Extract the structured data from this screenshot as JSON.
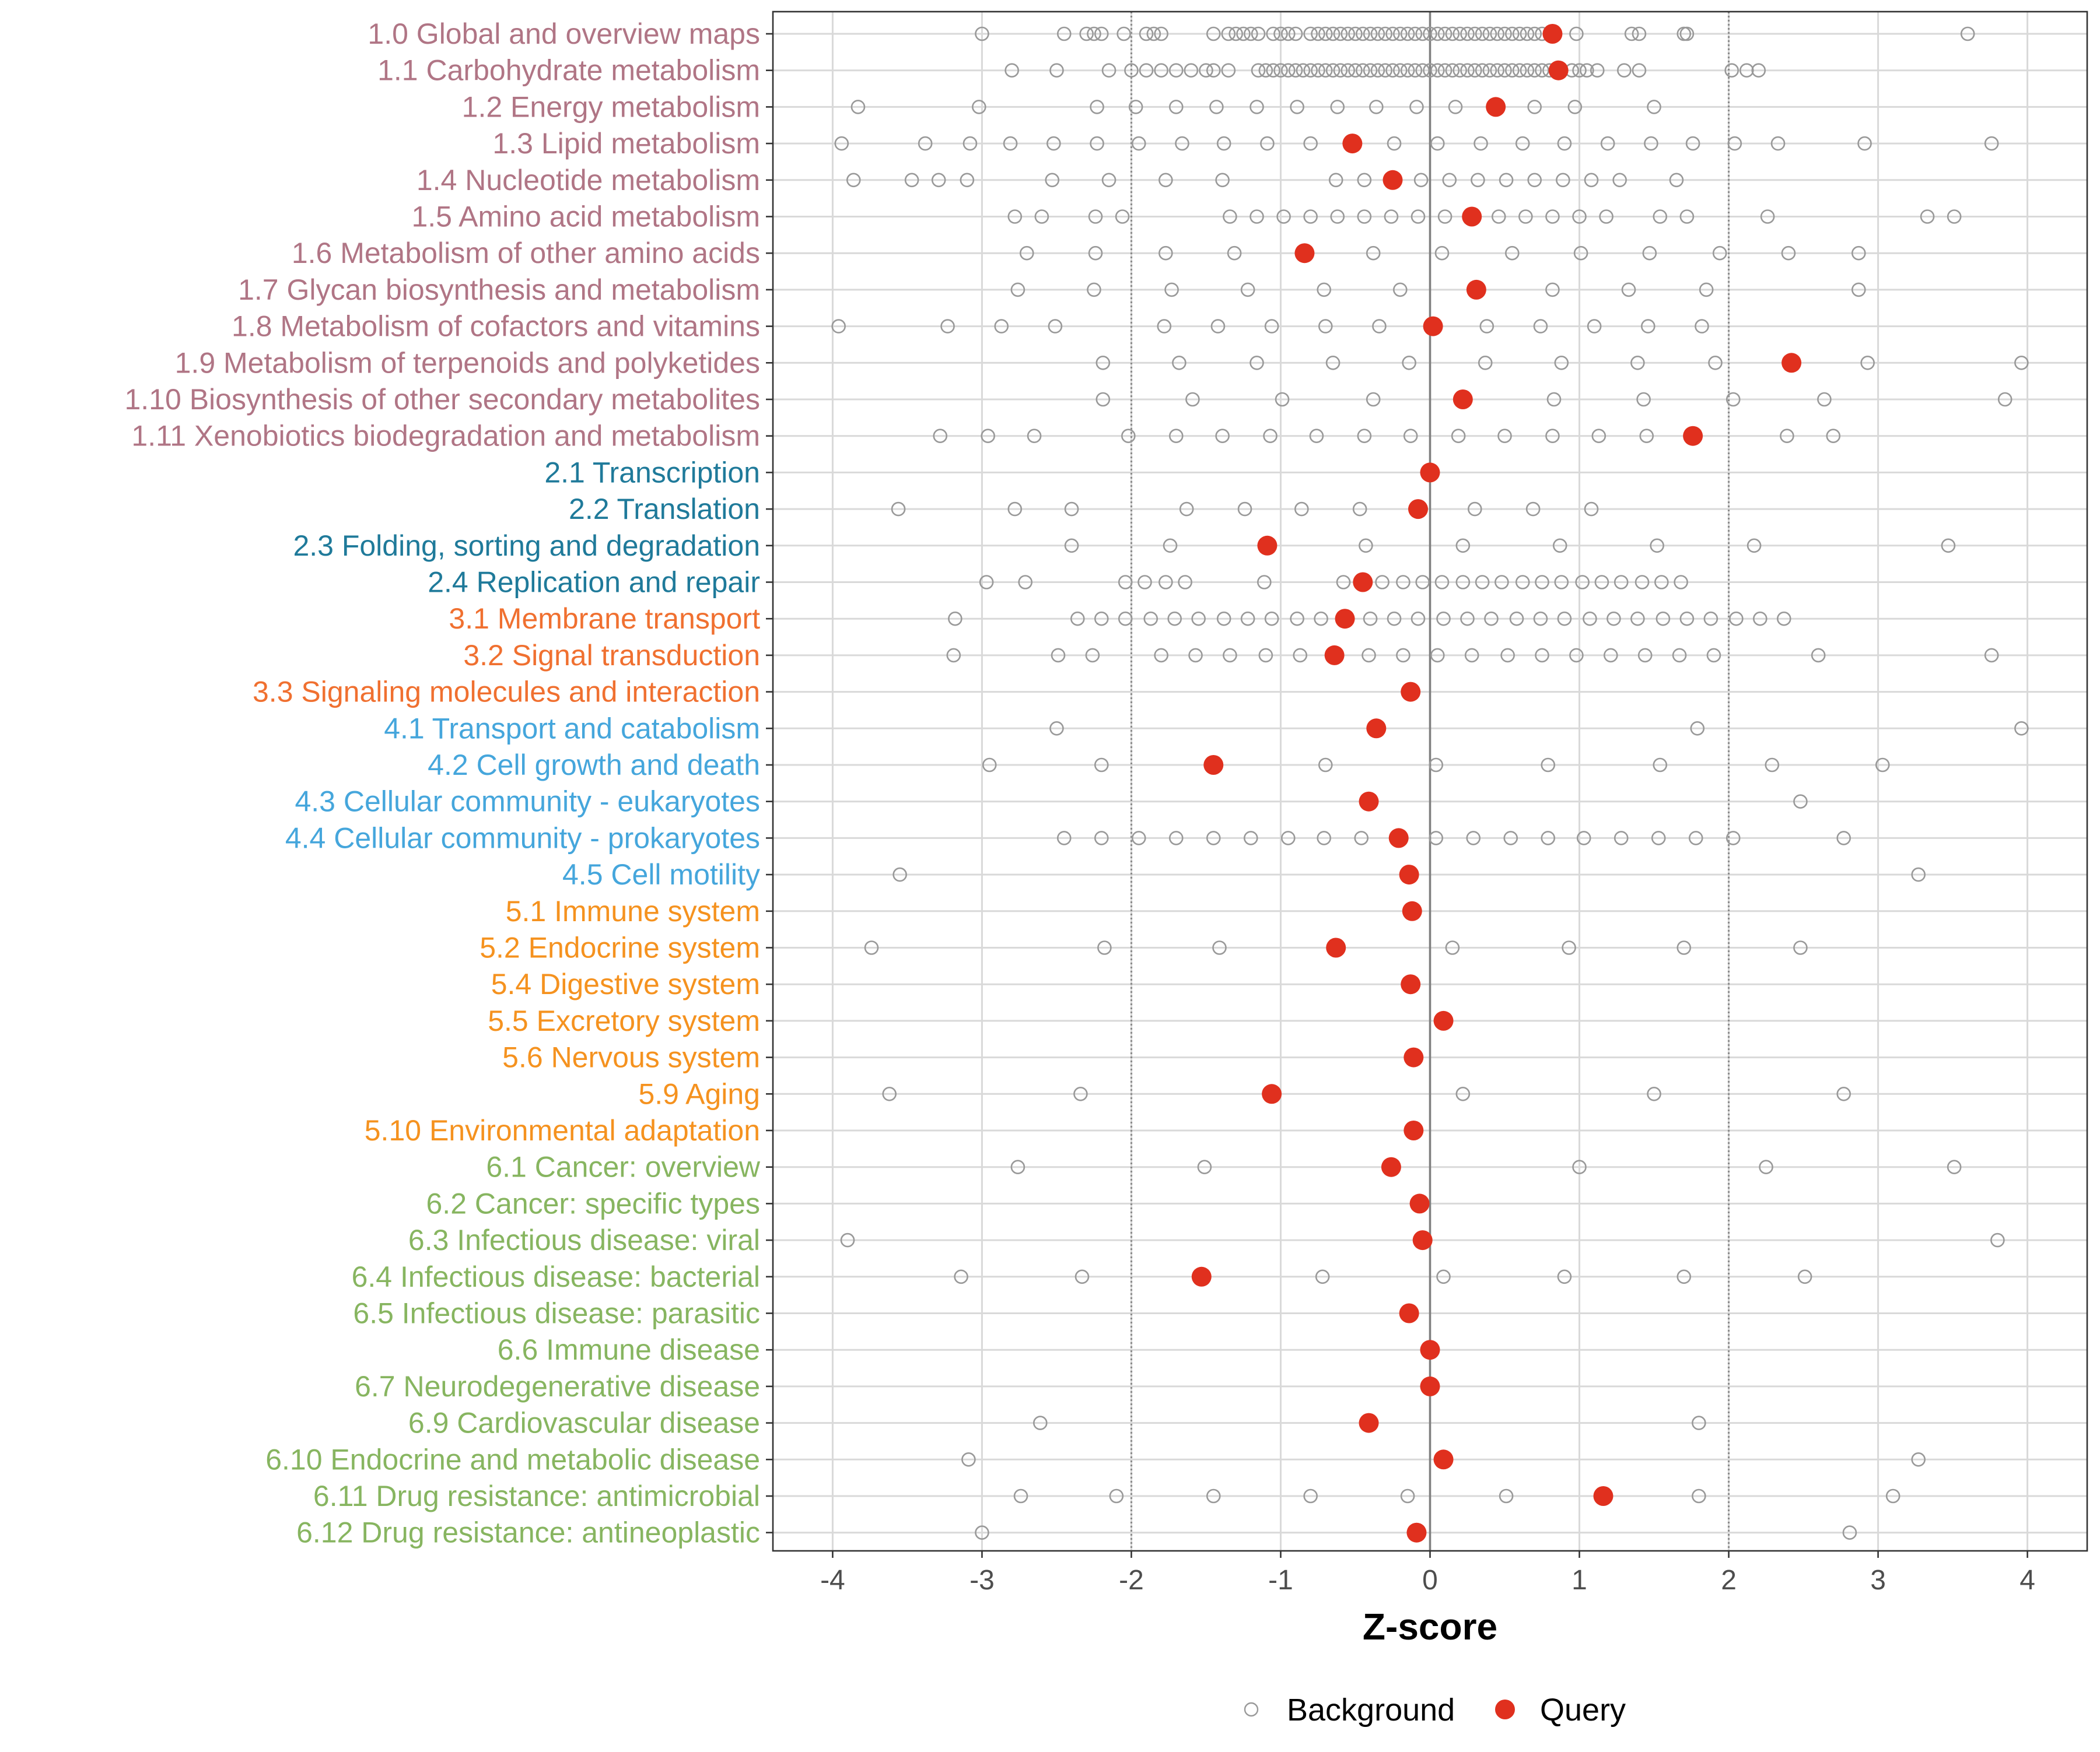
{
  "chart_data": {
    "type": "scatter",
    "title": "",
    "xlabel": "Z-score",
    "ylabel": "",
    "xlim": [
      -4.4,
      4.4
    ],
    "xticks": [
      -4,
      -3,
      -2,
      -1,
      0,
      1,
      2,
      3,
      4
    ],
    "threshold_lines": [
      -2,
      2
    ],
    "zero_line": 0,
    "legend": {
      "placement": "bottom",
      "items": [
        {
          "key": "background",
          "label": "Background"
        },
        {
          "key": "query",
          "label": "Query"
        }
      ]
    },
    "colors": {
      "background_point": "#999999",
      "query_point": "#e0301e",
      "grid": "#d9d9d9",
      "threshold": "#8c8c8c",
      "zero": "#808080",
      "cat1": "#b07585",
      "cat2": "#1f7a9a",
      "cat3": "#f07030",
      "cat4": "#45a6dc",
      "cat5": "#f5921f",
      "cat6": "#87b560"
    },
    "categories": [
      {
        "label": "1.0 Global and overview maps",
        "group": 1,
        "query": 0.82,
        "background": [
          -3.0,
          -2.45,
          -2.3,
          -2.25,
          -2.2,
          -2.05,
          -1.9,
          -1.85,
          -1.8,
          -1.45,
          -1.35,
          -1.3,
          -1.25,
          -1.2,
          -1.15,
          -1.05,
          -1.0,
          -0.95,
          -0.9,
          -0.8,
          -0.75,
          -0.7,
          -0.65,
          -0.6,
          -0.55,
          -0.5,
          -0.45,
          -0.4,
          -0.35,
          -0.3,
          -0.25,
          -0.2,
          -0.15,
          -0.1,
          -0.05,
          0.0,
          0.05,
          0.1,
          0.15,
          0.2,
          0.25,
          0.3,
          0.35,
          0.4,
          0.45,
          0.5,
          0.55,
          0.6,
          0.65,
          0.7,
          0.75,
          0.82,
          0.98,
          1.35,
          1.4,
          1.7,
          1.72,
          3.6
        ]
      },
      {
        "label": "1.1 Carbohydrate metabolism",
        "group": 1,
        "query": 0.86,
        "background": [
          -2.8,
          -2.5,
          -2.15,
          -2.0,
          -1.9,
          -1.8,
          -1.7,
          -1.6,
          -1.5,
          -1.45,
          -1.35,
          -1.15,
          -1.1,
          -1.05,
          -1.0,
          -0.95,
          -0.9,
          -0.85,
          -0.8,
          -0.75,
          -0.7,
          -0.65,
          -0.6,
          -0.55,
          -0.5,
          -0.45,
          -0.4,
          -0.35,
          -0.3,
          -0.25,
          -0.2,
          -0.15,
          -0.1,
          -0.05,
          0.0,
          0.05,
          0.1,
          0.15,
          0.2,
          0.25,
          0.3,
          0.35,
          0.4,
          0.45,
          0.5,
          0.55,
          0.6,
          0.65,
          0.7,
          0.75,
          0.8,
          0.95,
          1.0,
          1.05,
          1.12,
          1.3,
          1.4,
          2.02,
          2.12,
          2.2
        ]
      },
      {
        "label": "1.2 Energy metabolism",
        "group": 1,
        "query": 0.44,
        "background": [
          -3.83,
          -3.02,
          -2.23,
          -1.97,
          -1.7,
          -1.43,
          -1.16,
          -0.89,
          -0.62,
          -0.36,
          -0.09,
          0.17,
          0.7,
          0.97,
          1.5
        ]
      },
      {
        "label": "1.3 Lipid metabolism",
        "group": 1,
        "query": -0.52,
        "background": [
          -3.94,
          -3.38,
          -3.08,
          -2.81,
          -2.52,
          -2.23,
          -1.95,
          -1.66,
          -1.38,
          -1.09,
          -0.8,
          -0.52,
          -0.24,
          0.05,
          0.34,
          0.62,
          0.9,
          1.19,
          1.48,
          1.76,
          2.04,
          2.33,
          2.91,
          3.76
        ]
      },
      {
        "label": "1.4 Nucleotide metabolism",
        "group": 1,
        "query": -0.25,
        "background": [
          -3.86,
          -3.47,
          -3.29,
          -3.1,
          -2.53,
          -2.15,
          -1.77,
          -1.39,
          -0.63,
          -0.44,
          -0.25,
          -0.06,
          0.13,
          0.32,
          0.51,
          0.7,
          0.89,
          1.08,
          1.27,
          1.65
        ]
      },
      {
        "label": "1.5 Amino acid metabolism",
        "group": 1,
        "query": 0.28,
        "background": [
          -2.78,
          -2.6,
          -2.24,
          -2.06,
          -1.34,
          -1.16,
          -0.98,
          -0.8,
          -0.62,
          -0.44,
          -0.26,
          -0.08,
          0.1,
          0.28,
          0.46,
          0.64,
          0.82,
          1.0,
          1.18,
          1.54,
          1.72,
          2.26,
          3.33,
          3.51
        ]
      },
      {
        "label": "1.6 Metabolism of other amino acids",
        "group": 1,
        "query": -0.84,
        "background": [
          -2.7,
          -2.24,
          -1.77,
          -1.31,
          -0.84,
          -0.38,
          0.08,
          0.55,
          1.01,
          1.47,
          1.94,
          2.4,
          2.87
        ]
      },
      {
        "label": "1.7 Glycan biosynthesis and metabolism",
        "group": 1,
        "query": 0.31,
        "background": [
          -2.76,
          -2.25,
          -1.73,
          -1.22,
          -0.71,
          -0.2,
          0.31,
          0.82,
          1.33,
          1.85,
          2.87
        ]
      },
      {
        "label": "1.8 Metabolism of cofactors and vitamins",
        "group": 1,
        "query": 0.02,
        "background": [
          -3.96,
          -3.23,
          -2.87,
          -2.51,
          -1.78,
          -1.42,
          -1.06,
          -0.7,
          -0.34,
          0.02,
          0.38,
          0.74,
          1.1,
          1.46,
          1.82
        ]
      },
      {
        "label": "1.9 Metabolism of terpenoids and polyketides",
        "group": 1,
        "query": 2.42,
        "background": [
          -2.19,
          -1.68,
          -1.16,
          -0.65,
          -0.14,
          0.37,
          0.88,
          1.39,
          1.91,
          2.42,
          2.93,
          3.96
        ]
      },
      {
        "label": "1.10 Biosynthesis of other secondary metabolites",
        "group": 1,
        "query": 0.22,
        "background": [
          -2.19,
          -1.59,
          -0.99,
          -0.38,
          0.22,
          0.83,
          1.43,
          2.03,
          2.64,
          3.85
        ]
      },
      {
        "label": "1.11 Xenobiotics biodegradation and metabolism",
        "group": 1,
        "query": 1.76,
        "background": [
          -3.28,
          -2.96,
          -2.65,
          -2.02,
          -1.7,
          -1.39,
          -1.07,
          -0.76,
          -0.44,
          -0.13,
          0.19,
          0.5,
          0.82,
          1.13,
          1.45,
          1.76,
          2.39,
          2.7
        ]
      },
      {
        "label": "2.1 Transcription",
        "group": 2,
        "query": 0.0,
        "background": []
      },
      {
        "label": "2.2 Translation",
        "group": 2,
        "query": -0.08,
        "background": [
          -3.56,
          -2.78,
          -2.4,
          -1.63,
          -1.24,
          -0.86,
          -0.47,
          -0.08,
          0.3,
          0.69,
          1.08
        ]
      },
      {
        "label": "2.3 Folding, sorting and degradation",
        "group": 2,
        "query": -1.09,
        "background": [
          -2.4,
          -1.74,
          -1.09,
          -0.43,
          0.22,
          0.87,
          1.52,
          2.17,
          3.47
        ]
      },
      {
        "label": "2.4 Replication and repair",
        "group": 2,
        "query": -0.45,
        "background": [
          -2.97,
          -2.71,
          -2.04,
          -1.91,
          -1.77,
          -1.64,
          -1.11,
          -0.58,
          -0.45,
          -0.32,
          -0.18,
          -0.05,
          0.08,
          0.22,
          0.35,
          0.48,
          0.62,
          0.75,
          0.88,
          1.02,
          1.15,
          1.28,
          1.42,
          1.55,
          1.68
        ]
      },
      {
        "label": "3.1 Membrane transport",
        "group": 3,
        "query": -0.57,
        "background": [
          -3.18,
          -2.36,
          -2.2,
          -2.04,
          -1.87,
          -1.71,
          -1.55,
          -1.38,
          -1.22,
          -1.06,
          -0.89,
          -0.73,
          -0.57,
          -0.4,
          -0.24,
          -0.08,
          0.09,
          0.25,
          0.41,
          0.58,
          0.74,
          0.9,
          1.07,
          1.23,
          1.39,
          1.56,
          1.72,
          1.88,
          2.05,
          2.21,
          2.37
        ]
      },
      {
        "label": "3.2 Signal transduction",
        "group": 3,
        "query": -0.64,
        "background": [
          -3.19,
          -2.49,
          -2.26,
          -1.8,
          -1.57,
          -1.34,
          -1.1,
          -0.87,
          -0.64,
          -0.41,
          -0.18,
          0.05,
          0.28,
          0.52,
          0.75,
          0.98,
          1.21,
          1.44,
          1.67,
          1.9,
          2.6,
          3.76
        ]
      },
      {
        "label": "3.3 Signaling molecules and interaction",
        "group": 3,
        "query": -0.13,
        "background": []
      },
      {
        "label": "4.1 Transport and catabolism",
        "group": 4,
        "query": -0.36,
        "background": [
          -2.5,
          1.79,
          3.96
        ]
      },
      {
        "label": "4.2 Cell growth and death",
        "group": 4,
        "query": -1.45,
        "background": [
          -2.95,
          -2.2,
          -1.45,
          -0.7,
          0.04,
          0.79,
          1.54,
          2.29,
          3.03
        ]
      },
      {
        "label": "4.3 Cellular community - eukaryotes",
        "group": 4,
        "query": -0.41,
        "background": [
          2.48
        ]
      },
      {
        "label": "4.4 Cellular community - prokaryotes",
        "group": 4,
        "query": -0.21,
        "background": [
          -2.45,
          -2.2,
          -1.95,
          -1.7,
          -1.45,
          -1.2,
          -0.95,
          -0.71,
          -0.46,
          -0.21,
          0.04,
          0.29,
          0.54,
          0.79,
          1.03,
          1.28,
          1.53,
          1.78,
          2.03,
          2.77
        ]
      },
      {
        "label": "4.5 Cell motility",
        "group": 4,
        "query": -0.14,
        "background": [
          -3.55,
          3.27
        ]
      },
      {
        "label": "5.1 Immune system",
        "group": 5,
        "query": -0.12,
        "background": []
      },
      {
        "label": "5.2 Endocrine system",
        "group": 5,
        "query": -0.63,
        "background": [
          -3.74,
          -2.18,
          -1.41,
          -0.63,
          0.15,
          0.93,
          1.7,
          2.48
        ]
      },
      {
        "label": "5.4 Digestive system",
        "group": 5,
        "query": -0.13,
        "background": []
      },
      {
        "label": "5.5 Excretory system",
        "group": 5,
        "query": 0.09,
        "background": []
      },
      {
        "label": "5.6 Nervous system",
        "group": 5,
        "query": -0.11,
        "background": []
      },
      {
        "label": "5.9 Aging",
        "group": 5,
        "query": -1.06,
        "background": [
          -3.62,
          -2.34,
          0.22,
          1.5,
          2.77
        ]
      },
      {
        "label": "5.10 Environmental adaptation",
        "group": 5,
        "query": -0.11,
        "background": []
      },
      {
        "label": "6.1 Cancer: overview",
        "group": 6,
        "query": -0.26,
        "background": [
          -2.76,
          -1.51,
          1.0,
          2.25,
          3.51
        ]
      },
      {
        "label": "6.2 Cancer: specific types",
        "group": 6,
        "query": -0.07,
        "background": []
      },
      {
        "label": "6.3 Infectious disease: viral",
        "group": 6,
        "query": -0.05,
        "background": [
          -3.9,
          3.8
        ]
      },
      {
        "label": "6.4 Infectious disease: bacterial",
        "group": 6,
        "query": -1.53,
        "background": [
          -3.14,
          -2.33,
          -0.72,
          0.09,
          0.9,
          1.7,
          2.51
        ]
      },
      {
        "label": "6.5 Infectious disease: parasitic",
        "group": 6,
        "query": -0.14,
        "background": []
      },
      {
        "label": "6.6 Immune disease",
        "group": 6,
        "query": 0.0,
        "background": []
      },
      {
        "label": "6.7 Neurodegenerative disease",
        "group": 6,
        "query": 0.0,
        "background": []
      },
      {
        "label": "6.9 Cardiovascular disease",
        "group": 6,
        "query": -0.41,
        "background": [
          -2.61,
          1.8
        ]
      },
      {
        "label": "6.10 Endocrine and metabolic disease",
        "group": 6,
        "query": 0.09,
        "background": [
          -3.09,
          3.27
        ]
      },
      {
        "label": "6.11 Drug resistance: antimicrobial",
        "group": 6,
        "query": 1.16,
        "background": [
          -2.74,
          -2.1,
          -1.45,
          -0.8,
          -0.15,
          0.51,
          1.8,
          3.1
        ]
      },
      {
        "label": "6.12 Drug resistance: antineoplastic",
        "group": 6,
        "query": -0.09,
        "background": [
          -3.0,
          2.81
        ]
      }
    ]
  }
}
